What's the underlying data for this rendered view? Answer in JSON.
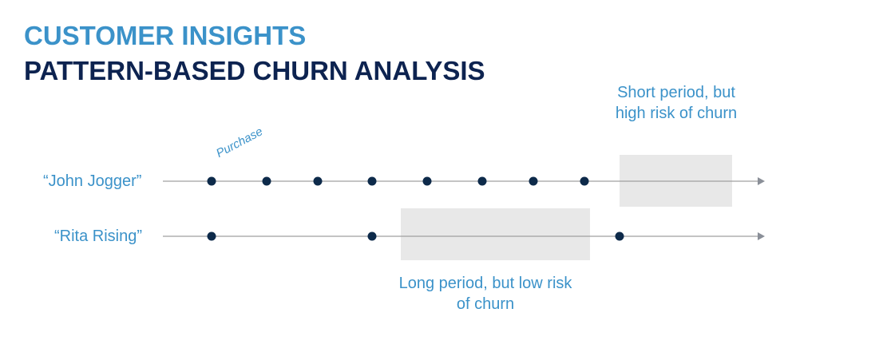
{
  "header": {
    "title": "CUSTOMER INSIGHTS",
    "subtitle": "PATTERN-BASED CHURN ANALYSIS"
  },
  "timelines": [
    {
      "name": "“John Jogger”",
      "purchases": 8
    },
    {
      "name": "“Rita Rising”",
      "purchases": 3
    }
  ],
  "purchase_label": "Purchase",
  "notes": {
    "short": "Short period, but high risk of churn",
    "long": "Long period, but low risk of churn"
  },
  "colors": {
    "accent": "#3b92c9",
    "dark": "#0d2350",
    "box": "#e8e8e8",
    "line": "#a0a0a0"
  }
}
